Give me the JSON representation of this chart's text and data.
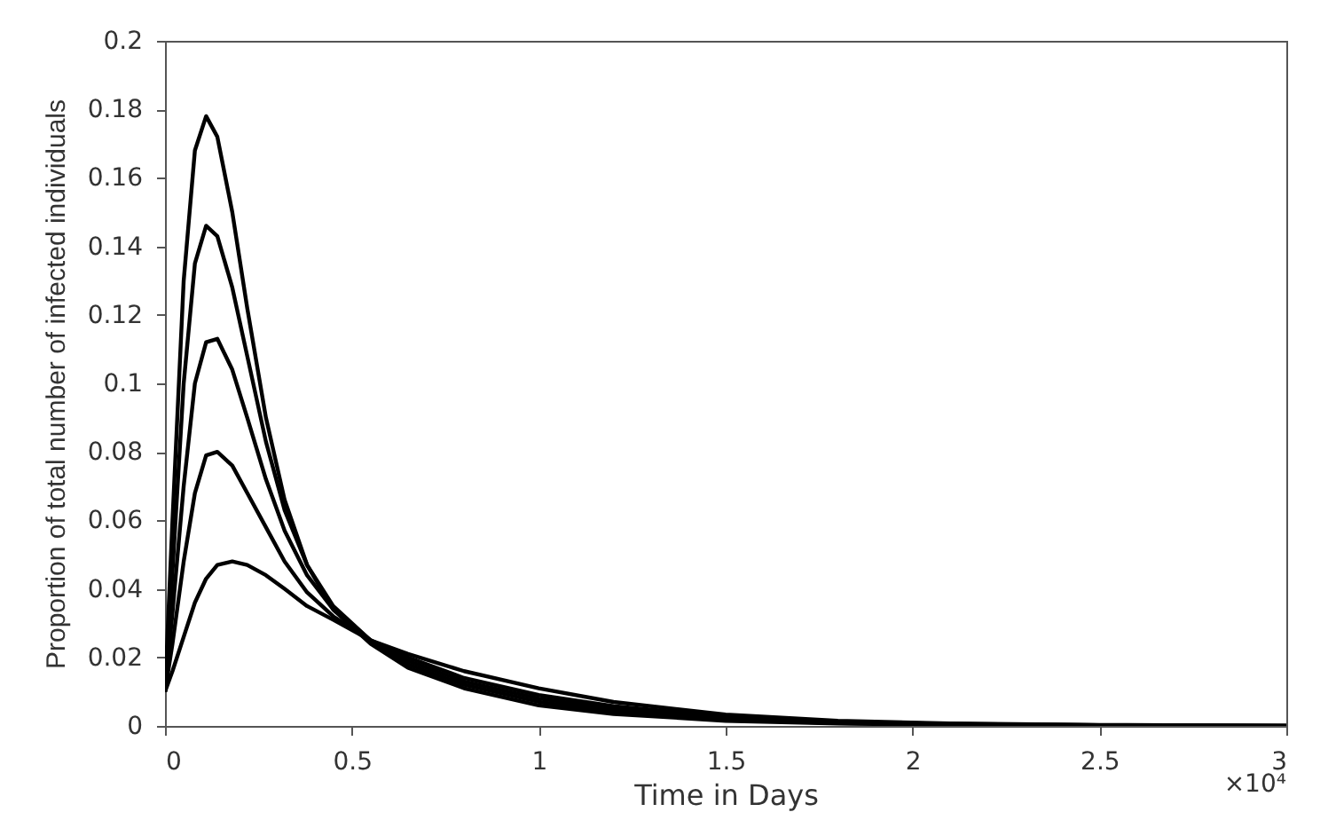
{
  "chart_data": {
    "type": "line",
    "xlabel": "Time in Days",
    "ylabel": "Proportion of total number of infected individuals",
    "annotations": [
      "×10⁴"
    ],
    "x": [
      0,
      0.02,
      0.05,
      0.08,
      0.11,
      0.14,
      0.18,
      0.22,
      0.27,
      0.32,
      0.38,
      0.45,
      0.55,
      0.65,
      0.8,
      1,
      1.2,
      1.5,
      1.8,
      2.1,
      2.5,
      3
    ],
    "series": [
      {
        "color": "#000000",
        "values": [
          0.01,
          0.06,
          0.13,
          0.168,
          0.178,
          0.172,
          0.15,
          0.122,
          0.09,
          0.066,
          0.047,
          0.034,
          0.024,
          0.017,
          0.011,
          0.006,
          0.0035,
          0.0015,
          0.0007,
          0.0003,
          0.0001,
          0
        ]
      },
      {
        "color": "#000000",
        "values": [
          0.01,
          0.045,
          0.1,
          0.135,
          0.146,
          0.143,
          0.128,
          0.108,
          0.083,
          0.063,
          0.047,
          0.035,
          0.025,
          0.018,
          0.012,
          0.007,
          0.0042,
          0.0018,
          0.0008,
          0.0004,
          0.0001,
          0
        ]
      },
      {
        "color": "#000000",
        "values": [
          0.01,
          0.033,
          0.07,
          0.1,
          0.112,
          0.113,
          0.104,
          0.09,
          0.072,
          0.057,
          0.044,
          0.034,
          0.025,
          0.019,
          0.013,
          0.008,
          0.005,
          0.0022,
          0.001,
          0.0005,
          0.0002,
          0
        ]
      },
      {
        "color": "#000000",
        "values": [
          0.01,
          0.024,
          0.048,
          0.068,
          0.079,
          0.08,
          0.076,
          0.068,
          0.058,
          0.048,
          0.039,
          0.032,
          0.025,
          0.02,
          0.014,
          0.009,
          0.0058,
          0.0027,
          0.0012,
          0.0006,
          0.0002,
          0
        ]
      },
      {
        "color": "#000000",
        "values": [
          0.01,
          0.016,
          0.026,
          0.036,
          0.043,
          0.047,
          0.048,
          0.047,
          0.044,
          0.04,
          0.035,
          0.031,
          0.025,
          0.021,
          0.016,
          0.011,
          0.007,
          0.0033,
          0.0015,
          0.0007,
          0.0003,
          0
        ]
      }
    ],
    "xlim": [
      0,
      3
    ],
    "xticks": [
      0,
      0.5,
      1,
      1.5,
      2,
      2.5,
      3
    ],
    "ylim": [
      0,
      0.2
    ],
    "yticks": [
      0,
      0.02,
      0.04,
      0.06,
      0.08,
      0.1,
      0.12,
      0.14,
      0.16,
      0.18,
      0.2
    ],
    "marker": "none",
    "line_style": "solid",
    "grid": false,
    "legend": false
  }
}
